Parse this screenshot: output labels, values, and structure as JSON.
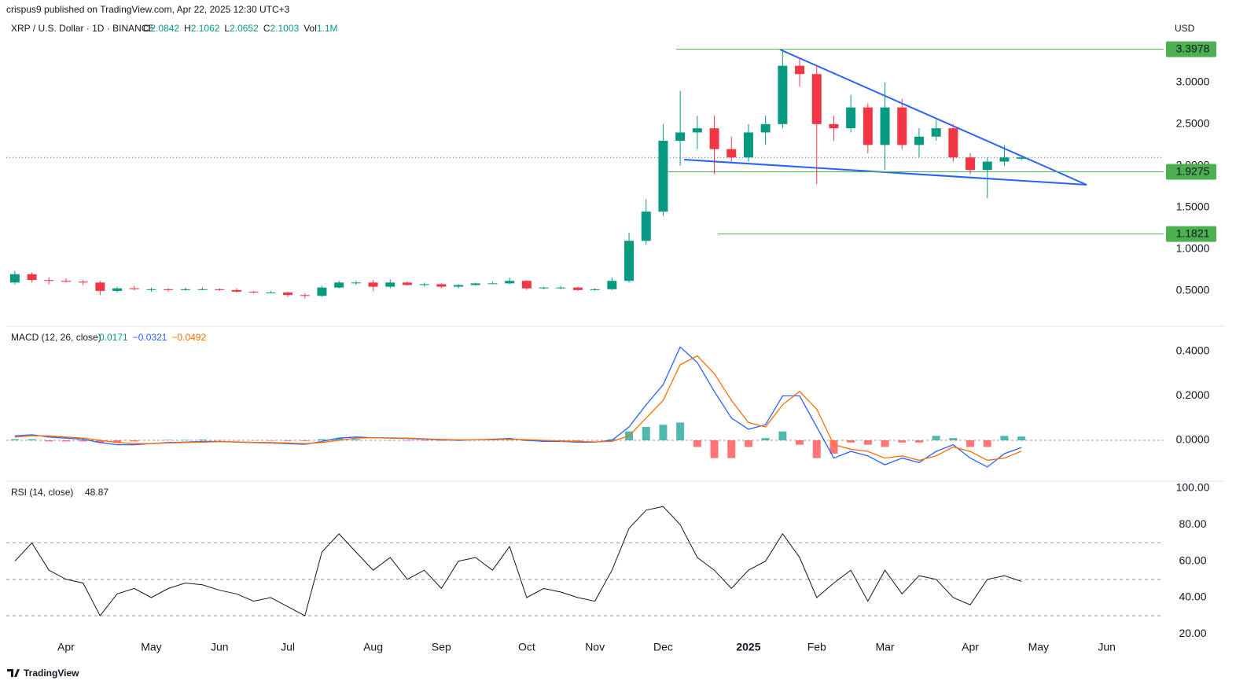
{
  "header": {
    "publisher": "crispus9 published on TradingView.com, Apr 22, 2025 12:30 UTC+3",
    "symbol": "XRP / U.S. Dollar · 1D · BINANCE",
    "ohlc_letters": [
      "O",
      "H",
      "L",
      "C"
    ],
    "volume_letter": "Vol",
    "volume": "1.1M",
    "currency": "USD"
  },
  "chart_data": [
    {
      "type": "candlestick",
      "categories": [
        null,
        null,
        null,
        "Apr",
        null,
        null,
        null,
        null,
        "May",
        null,
        null,
        null,
        "Jun",
        null,
        null,
        null,
        "Jul",
        null,
        null,
        null,
        null,
        "Aug",
        null,
        null,
        null,
        "Sep",
        null,
        null,
        null,
        null,
        "Oct",
        null,
        null,
        null,
        "Nov",
        null,
        null,
        null,
        "Dec",
        null,
        null,
        null,
        null,
        "2025",
        null,
        null,
        null,
        "Feb",
        null,
        null,
        null,
        "Mar",
        null,
        null,
        null,
        null,
        "Apr",
        null,
        null,
        null,
        "May",
        null,
        null,
        null,
        "Jun"
      ],
      "open": [
        0.6,
        0.7,
        0.63,
        0.62,
        0.61,
        0.6,
        0.5,
        0.53,
        0.52,
        0.52,
        0.51,
        0.52,
        0.52,
        0.51,
        0.49,
        0.48,
        0.48,
        0.45,
        0.44,
        0.54,
        0.6,
        0.6,
        0.55,
        0.6,
        0.57,
        0.58,
        0.55,
        0.57,
        0.59,
        0.59,
        0.62,
        0.53,
        0.54,
        0.54,
        0.51,
        0.52,
        0.62,
        1.1,
        1.45,
        2.3,
        2.4,
        2.45,
        2.2,
        2.1,
        2.4,
        2.5,
        3.2,
        3.1,
        2.5,
        2.45,
        2.7,
        2.25,
        2.7,
        2.25,
        2.35,
        2.45,
        2.1,
        1.95,
        2.05,
        2.0842,
        null,
        null,
        null,
        null,
        null
      ],
      "high": [
        0.74,
        0.72,
        0.66,
        0.65,
        0.63,
        0.62,
        0.55,
        0.56,
        0.54,
        0.53,
        0.54,
        0.54,
        0.53,
        0.53,
        0.5,
        0.5,
        0.49,
        0.47,
        0.56,
        0.62,
        0.62,
        0.63,
        0.64,
        0.61,
        0.6,
        0.59,
        0.58,
        0.6,
        0.61,
        0.66,
        0.63,
        0.55,
        0.56,
        0.55,
        0.53,
        0.66,
        1.2,
        1.6,
        2.5,
        2.9,
        2.6,
        2.6,
        2.35,
        2.5,
        2.6,
        3.4,
        3.3,
        3.2,
        2.6,
        2.85,
        2.75,
        3.0,
        2.8,
        2.45,
        2.55,
        2.5,
        2.15,
        2.1,
        2.25,
        2.1062,
        null,
        null,
        null,
        null,
        null
      ],
      "low": [
        0.58,
        0.6,
        0.58,
        0.6,
        0.57,
        0.45,
        0.48,
        0.51,
        0.49,
        0.49,
        0.5,
        0.51,
        0.5,
        0.48,
        0.47,
        0.47,
        0.43,
        0.41,
        0.43,
        0.53,
        0.57,
        0.5,
        0.53,
        0.56,
        0.55,
        0.53,
        0.53,
        0.56,
        0.58,
        0.58,
        0.51,
        0.52,
        0.52,
        0.5,
        0.5,
        0.51,
        0.6,
        1.05,
        1.4,
        2.0,
        2.2,
        1.9,
        2.05,
        2.05,
        2.25,
        2.45,
        2.95,
        1.78,
        2.3,
        2.4,
        2.15,
        1.95,
        2.2,
        2.1,
        2.3,
        2.05,
        1.9,
        1.61,
        2.0,
        2.0652,
        null,
        null,
        null,
        null,
        null
      ],
      "close": [
        0.7,
        0.63,
        0.62,
        0.61,
        0.6,
        0.5,
        0.53,
        0.52,
        0.52,
        0.51,
        0.52,
        0.52,
        0.51,
        0.49,
        0.48,
        0.48,
        0.45,
        0.44,
        0.54,
        0.6,
        0.6,
        0.55,
        0.6,
        0.57,
        0.58,
        0.55,
        0.57,
        0.59,
        0.59,
        0.62,
        0.53,
        0.54,
        0.54,
        0.51,
        0.52,
        0.62,
        1.1,
        1.45,
        2.3,
        2.4,
        2.45,
        2.2,
        2.1,
        2.4,
        2.5,
        3.2,
        3.1,
        2.5,
        2.45,
        2.7,
        2.25,
        2.7,
        2.25,
        2.35,
        2.45,
        2.1,
        1.95,
        2.05,
        2.1,
        2.1003,
        null,
        null,
        null,
        null,
        null
      ],
      "up_color": "#089981",
      "down_color": "#f23645",
      "ylim": [
        0.075,
        3.8
      ],
      "yticks": [
        {
          "value": 0.5,
          "label": "0.5000"
        },
        {
          "value": 1.0,
          "label": "1.0000"
        },
        {
          "value": 1.5,
          "label": "1.5000"
        },
        {
          "value": 2.0,
          "label": "2.0000"
        },
        {
          "value": 2.5,
          "label": "2.5000"
        },
        {
          "value": 3.0,
          "label": "3.0000"
        }
      ],
      "levels": [
        3.3978,
        1.9275,
        1.1821
      ],
      "level_color": "#4caf50"
    },
    {
      "type": "macd",
      "title": "MACD (12, 26, close)",
      "readouts": [
        0.0171,
        {
          "value": -0.0321,
          "label": "−0.0321"
        },
        {
          "value": -0.0492,
          "label": "−0.0492"
        }
      ],
      "readout_colors": [
        "#089981",
        "#2962ff",
        "#ff6d00"
      ],
      "histogram": {
        "up_color": "#26a69a",
        "down_color": "#ff5252",
        "values": [
          0.005,
          0.005,
          -0.005,
          -0.005,
          -0.005,
          -0.01,
          -0.01,
          -0.005,
          0,
          0.002,
          0.002,
          0.003,
          0.001,
          -0.001,
          -0.001,
          -0.002,
          -0.003,
          -0.003,
          0.005,
          0.01,
          0.005,
          0,
          -0.001,
          -0.002,
          -0.002,
          -0.002,
          -0.002,
          0,
          0.002,
          0.003,
          -0.003,
          -0.005,
          -0.002,
          -0.003,
          -0.001,
          0.005,
          0.04,
          0.06,
          0.07,
          0.08,
          -0.03,
          -0.08,
          -0.08,
          -0.03,
          0.01,
          0.04,
          -0.02,
          -0.08,
          -0.06,
          -0.01,
          -0.02,
          -0.03,
          -0.01,
          -0.01,
          0.02,
          0.01,
          -0.03,
          -0.03,
          0.02,
          0.0171,
          null,
          null,
          null,
          null,
          null
        ]
      },
      "series": [
        {
          "color": "#2962ff",
          "values": [
            0.02,
            0.025,
            0.015,
            0.01,
            0.005,
            -0.01,
            -0.02,
            -0.02,
            -0.015,
            -0.01,
            -0.008,
            -0.005,
            -0.005,
            -0.008,
            -0.01,
            -0.012,
            -0.015,
            -0.018,
            -0.005,
            0.01,
            0.015,
            0.012,
            0.01,
            0.008,
            0.005,
            0.002,
            0.0,
            0.002,
            0.005,
            0.008,
            0.0,
            -0.005,
            -0.005,
            -0.008,
            -0.008,
            0.0,
            0.06,
            0.16,
            0.25,
            0.42,
            0.35,
            0.22,
            0.1,
            0.05,
            0.07,
            0.2,
            0.2,
            0.06,
            -0.08,
            -0.05,
            -0.07,
            -0.11,
            -0.08,
            -0.1,
            -0.05,
            -0.02,
            -0.08,
            -0.12,
            -0.06,
            -0.0321,
            null,
            null,
            null,
            null,
            null
          ]
        },
        {
          "color": "#ff6d00",
          "values": [
            0.015,
            0.02,
            0.02,
            0.015,
            0.01,
            0.0,
            -0.01,
            -0.015,
            -0.015,
            -0.012,
            -0.01,
            -0.008,
            -0.006,
            -0.007,
            -0.009,
            -0.01,
            -0.012,
            -0.015,
            -0.01,
            0.0,
            0.01,
            0.012,
            0.011,
            0.01,
            0.007,
            0.004,
            0.002,
            0.002,
            0.003,
            0.005,
            0.003,
            0.0,
            -0.003,
            -0.005,
            -0.007,
            -0.005,
            0.02,
            0.1,
            0.18,
            0.34,
            0.38,
            0.3,
            0.18,
            0.08,
            0.06,
            0.16,
            0.22,
            0.14,
            -0.02,
            -0.04,
            -0.05,
            -0.08,
            -0.07,
            -0.09,
            -0.07,
            -0.03,
            -0.05,
            -0.09,
            -0.08,
            -0.0492,
            null,
            null,
            null,
            null,
            null
          ]
        }
      ],
      "ylim": [
        -0.184,
        0.513
      ],
      "yticks": [
        {
          "value": 0,
          "label": "0.0000"
        },
        {
          "value": 0.2,
          "label": "0.2000"
        },
        {
          "value": 0.4,
          "label": "0.4000"
        }
      ],
      "zero_line": true
    },
    {
      "type": "rsi",
      "title": "RSI (14, close)",
      "readouts": [
        48.87
      ],
      "series": [
        {
          "color": "#131722",
          "values": [
            60,
            70,
            55,
            50,
            48,
            30,
            42,
            45,
            40,
            45,
            48,
            47,
            44,
            42,
            38,
            40,
            35,
            30,
            65,
            75,
            65,
            55,
            62,
            50,
            55,
            45,
            60,
            62,
            55,
            68,
            40,
            45,
            43,
            40,
            38,
            55,
            78,
            88,
            90,
            80,
            62,
            55,
            45,
            55,
            60,
            75,
            62,
            40,
            48,
            55,
            38,
            55,
            42,
            52,
            50,
            40,
            36,
            50,
            52,
            48.87,
            null,
            null,
            null,
            null,
            null
          ]
        }
      ],
      "ylim": [
        18.4,
        103.9
      ],
      "yticks": [
        {
          "value": 20,
          "label": "20.00"
        },
        {
          "value": 40,
          "label": "40.00"
        },
        {
          "value": 60,
          "label": "60.00"
        },
        {
          "value": 80,
          "label": "80.00"
        },
        {
          "value": 100,
          "label": "100.00"
        }
      ],
      "levels": [
        70,
        50,
        30
      ]
    }
  ],
  "footer": {
    "brand": "TradingView"
  }
}
